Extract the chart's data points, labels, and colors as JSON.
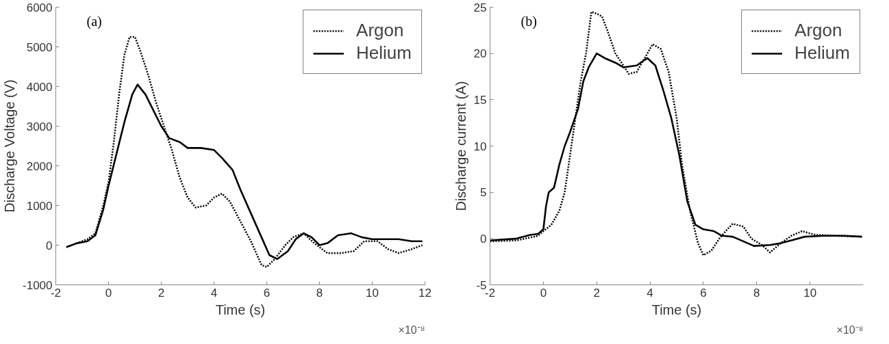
{
  "chart_data": [
    {
      "type": "line",
      "xlabel": "Time (s)",
      "ylabel": "Discharge Voltage (V)",
      "annotations": [
        "(a)",
        "×10⁻⁸"
      ],
      "xlim": [
        -2,
        12
      ],
      "xticks": [
        -2,
        0,
        2,
        4,
        6,
        8,
        10,
        12
      ],
      "ylim": [
        -1000,
        6000
      ],
      "yticks": [
        -1000,
        0,
        1000,
        2000,
        3000,
        4000,
        5000,
        6000
      ],
      "grid": false,
      "legend": "top right",
      "series": [
        {
          "name": "Argon",
          "color": "#000000",
          "line_style": "dotted",
          "x": [
            -1.6,
            -1.2,
            -0.8,
            -0.5,
            -0.2,
            0,
            0.2,
            0.4,
            0.6,
            0.8,
            1.0,
            1.2,
            1.5,
            1.8,
            2.1,
            2.4,
            2.7,
            3.0,
            3.3,
            3.7,
            4.0,
            4.3,
            4.6,
            5.0,
            5.4,
            5.8,
            6.0,
            6.3,
            6.7,
            7.0,
            7.4,
            7.8,
            8.3,
            8.8,
            9.3,
            9.7,
            10.2,
            10.6,
            11.0,
            11.5,
            11.9
          ],
          "values": [
            -50,
            50,
            150,
            300,
            1000,
            1600,
            2600,
            3800,
            4800,
            5250,
            5250,
            4900,
            4300,
            3600,
            3000,
            2400,
            1700,
            1200,
            950,
            1000,
            1200,
            1300,
            1100,
            600,
            100,
            -500,
            -550,
            -350,
            0,
            200,
            300,
            50,
            -200,
            -200,
            -150,
            100,
            100,
            -100,
            -200,
            -100,
            0
          ]
        },
        {
          "name": "Helium",
          "color": "#000000",
          "line_style": "solid",
          "x": [
            -1.6,
            -1.2,
            -0.8,
            -0.5,
            -0.2,
            0,
            0.3,
            0.6,
            0.9,
            1.1,
            1.4,
            1.7,
            2.0,
            2.3,
            2.7,
            3.0,
            3.5,
            4.0,
            4.3,
            4.7,
            5.0,
            5.4,
            5.8,
            6.1,
            6.4,
            6.8,
            7.1,
            7.4,
            7.7,
            8.0,
            8.3,
            8.7,
            9.2,
            9.6,
            10.0,
            10.5,
            11.0,
            11.5,
            11.9
          ],
          "values": [
            -50,
            50,
            100,
            250,
            900,
            1500,
            2300,
            3100,
            3800,
            4050,
            3800,
            3400,
            3000,
            2700,
            2600,
            2450,
            2450,
            2400,
            2200,
            1900,
            1400,
            800,
            200,
            -250,
            -350,
            -150,
            150,
            300,
            200,
            0,
            50,
            250,
            300,
            200,
            150,
            150,
            150,
            100,
            100
          ]
        }
      ]
    },
    {
      "type": "line",
      "xlabel": "Time (s)",
      "ylabel": "Discharge current (A)",
      "annotations": [
        "(b)",
        "×10⁻⁸"
      ],
      "xlim": [
        -2,
        12
      ],
      "xticks": [
        -2,
        0,
        2,
        4,
        6,
        8,
        10
      ],
      "ylim": [
        -5,
        25
      ],
      "yticks": [
        -5,
        0,
        5,
        10,
        15,
        20,
        25
      ],
      "grid": false,
      "legend": "top right",
      "series": [
        {
          "name": "Argon",
          "color": "#000000",
          "line_style": "dotted",
          "x": [
            -2,
            -1,
            -0.2,
            0,
            0.3,
            0.6,
            0.8,
            1.0,
            1.2,
            1.4,
            1.6,
            1.8,
            2.0,
            2.2,
            2.4,
            2.7,
            3.0,
            3.2,
            3.5,
            3.8,
            4.1,
            4.4,
            4.7,
            5.0,
            5.2,
            5.5,
            5.8,
            6.0,
            6.3,
            6.6,
            6.9,
            7.1,
            7.5,
            7.8,
            8.2,
            8.5,
            8.9,
            9.3,
            9.7,
            10.2,
            11.0,
            11.95
          ],
          "values": [
            -0.3,
            -0.2,
            0.3,
            0.8,
            1.5,
            3,
            5,
            9,
            13,
            17,
            20,
            24.5,
            24.3,
            24,
            22.5,
            20,
            18.7,
            17.8,
            18,
            19.5,
            21,
            20.5,
            18,
            13,
            8,
            3,
            -0.5,
            -1.8,
            -1.3,
            0,
            1,
            1.6,
            1.3,
            0,
            -0.7,
            -1.5,
            -0.5,
            0.3,
            0.8,
            0.4,
            0.3,
            0.2
          ]
        },
        {
          "name": "Helium",
          "color": "#000000",
          "line_style": "solid",
          "x": [
            -2,
            -1,
            -0.5,
            -0.2,
            0,
            0.1,
            0.2,
            0.4,
            0.6,
            0.8,
            1.0,
            1.3,
            1.5,
            1.7,
            2.0,
            2.3,
            2.7,
            3.0,
            3.5,
            3.9,
            4.2,
            4.5,
            4.8,
            5.1,
            5.4,
            5.7,
            6.0,
            6.4,
            6.7,
            7.1,
            7.5,
            7.9,
            8.5,
            8.9,
            9.3,
            9.8,
            10.5,
            11.3,
            11.95
          ],
          "values": [
            -0.2,
            0,
            0.4,
            0.5,
            1,
            3.5,
            5,
            5.5,
            8,
            10,
            11.5,
            14,
            17,
            18.5,
            20,
            19.5,
            19,
            18.5,
            18.7,
            19.5,
            18.7,
            16,
            13,
            9,
            4,
            1.5,
            1,
            0.8,
            0.3,
            0.2,
            -0.3,
            -0.8,
            -0.7,
            -0.5,
            -0.2,
            0.2,
            0.3,
            0.3,
            0.2
          ]
        }
      ]
    }
  ]
}
